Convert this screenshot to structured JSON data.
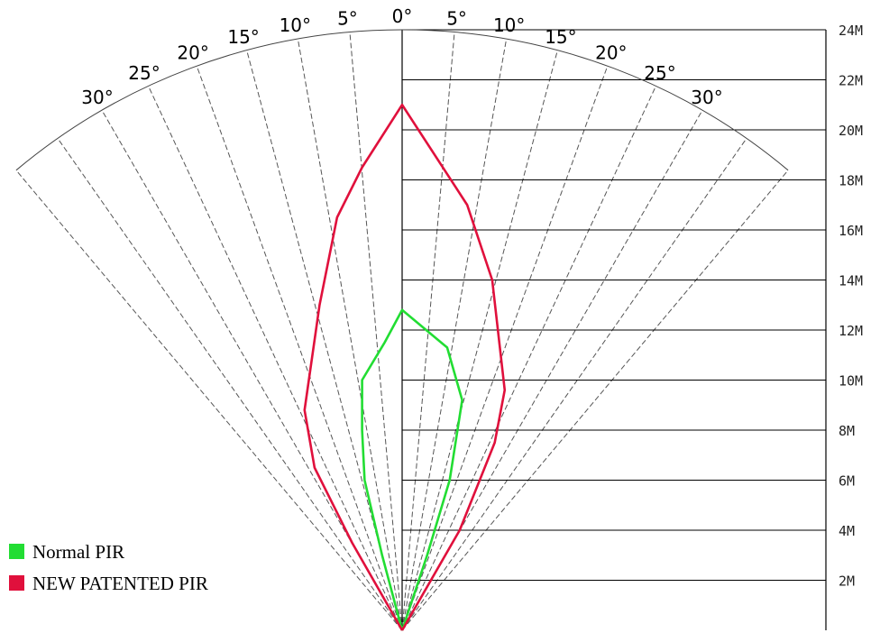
{
  "diagram": {
    "max_range_m": 24,
    "distance_labels": [
      {
        "m": 2,
        "text": "2M"
      },
      {
        "m": 4,
        "text": "4M"
      },
      {
        "m": 6,
        "text": "6M"
      },
      {
        "m": 8,
        "text": "8M"
      },
      {
        "m": 10,
        "text": "10M"
      },
      {
        "m": 12,
        "text": "12M"
      },
      {
        "m": 14,
        "text": "14M"
      },
      {
        "m": 16,
        "text": "16M"
      },
      {
        "m": 18,
        "text": "18M"
      },
      {
        "m": 20,
        "text": "20M"
      },
      {
        "m": 22,
        "text": "22M"
      },
      {
        "m": 24,
        "text": "24M"
      }
    ],
    "angle_labels": [
      {
        "deg": -30,
        "text": "30°"
      },
      {
        "deg": -25,
        "text": "25°"
      },
      {
        "deg": -20,
        "text": "20°"
      },
      {
        "deg": -15,
        "text": "15°"
      },
      {
        "deg": -10,
        "text": "10°"
      },
      {
        "deg": -5,
        "text": "5°"
      },
      {
        "deg": 0,
        "text": "0°"
      },
      {
        "deg": 5,
        "text": "5°"
      },
      {
        "deg": 10,
        "text": "10°"
      },
      {
        "deg": 15,
        "text": "15°"
      },
      {
        "deg": 20,
        "text": "20°"
      },
      {
        "deg": 25,
        "text": "25°"
      },
      {
        "deg": 30,
        "text": "30°"
      }
    ],
    "series": [
      {
        "name": "Normal PIR",
        "color": "#22dd33",
        "points_m": [
          [
            0,
            0
          ],
          [
            -0.8,
            3
          ],
          [
            -1.5,
            6
          ],
          [
            -1.6,
            8
          ],
          [
            -1.6,
            10
          ],
          [
            -0.7,
            11.5
          ],
          [
            0,
            12.8
          ],
          [
            1.8,
            11.3
          ],
          [
            2.4,
            9.2
          ],
          [
            1.9,
            6
          ],
          [
            1,
            3
          ],
          [
            0,
            0
          ]
        ]
      },
      {
        "name": "NEW PATENTED PIR",
        "color": "#e0103c",
        "points_m": [
          [
            0,
            0
          ],
          [
            -2,
            3.5
          ],
          [
            -3.5,
            6.5
          ],
          [
            -3.9,
            8.8
          ],
          [
            -3.3,
            13
          ],
          [
            -2.6,
            16.5
          ],
          [
            -1.6,
            18.5
          ],
          [
            0,
            21
          ],
          [
            2.6,
            17
          ],
          [
            3.6,
            14
          ],
          [
            4.1,
            9.6
          ],
          [
            3.7,
            7.5
          ],
          [
            2.3,
            4
          ],
          [
            0,
            0
          ]
        ]
      }
    ],
    "legend": [
      {
        "label": "Normal PIR",
        "color": "#22dd33"
      },
      {
        "label": "NEW PATENTED PIR",
        "color": "#e0103c"
      }
    ]
  }
}
